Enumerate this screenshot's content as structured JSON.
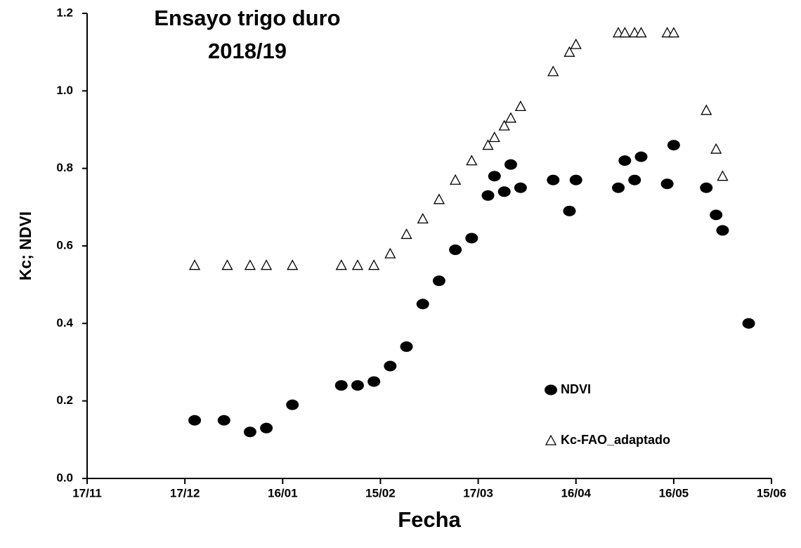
{
  "chart_data": {
    "type": "scatter",
    "title": [
      "Ensayo trigo duro",
      "2018/19"
    ],
    "x_label": "Fecha",
    "y_label": "Kc; NDVI",
    "xlim": [
      "17/11",
      "15/06"
    ],
    "xticks": [
      "17/11",
      "17/12",
      "16/01",
      "15/02",
      "17/03",
      "16/04",
      "16/05",
      "15/06"
    ],
    "ylim": [
      0,
      1.2
    ],
    "yticks": [
      {
        "value": 0,
        "label": "0.0"
      },
      {
        "value": 0.2,
        "label": "0.2"
      },
      {
        "value": 0.4,
        "label": "0.4"
      },
      {
        "value": 0.6,
        "label": "0.6"
      },
      {
        "value": 0.8,
        "label": "0.8"
      },
      {
        "value": 1.0,
        "label": "1.0"
      },
      {
        "value": 1.2,
        "label": "1.2"
      }
    ],
    "grid": false,
    "series": [
      {
        "name": "NDVI",
        "color": "#000000",
        "marker": "circle",
        "x": [
          "20/12",
          "29/12",
          "06/01",
          "11/01",
          "19/01",
          "03/02",
          "08/02",
          "13/02",
          "18/02",
          "23/02",
          "28/02",
          "05/03",
          "10/03",
          "15/03",
          "20/03",
          "22/03",
          "25/03",
          "27/03",
          "30/03",
          "09/04",
          "14/04",
          "16/04",
          "29/04",
          "01/05",
          "04/05",
          "06/05",
          "14/05",
          "16/05",
          "26/05",
          "29/05",
          "31/05",
          "08/06"
        ],
        "values": [
          0.15,
          0.15,
          0.12,
          0.13,
          0.19,
          0.24,
          0.24,
          0.25,
          0.29,
          0.34,
          0.45,
          0.51,
          0.59,
          0.62,
          0.73,
          0.78,
          0.74,
          0.81,
          0.75,
          0.77,
          0.69,
          0.77,
          0.75,
          0.82,
          0.77,
          0.83,
          0.76,
          0.86,
          0.75,
          0.68,
          0.64,
          0.4
        ]
      },
      {
        "name": "Kc-FAO_adaptado",
        "color": "#000000",
        "marker": "triangle",
        "x": [
          "20/12",
          "30/12",
          "06/01",
          "11/01",
          "19/01",
          "03/02",
          "08/02",
          "13/02",
          "18/02",
          "23/02",
          "28/02",
          "05/03",
          "10/03",
          "15/03",
          "20/03",
          "22/03",
          "25/03",
          "27/03",
          "30/03",
          "09/04",
          "14/04",
          "16/04",
          "29/04",
          "01/05",
          "04/05",
          "06/05",
          "14/05",
          "16/05",
          "26/05",
          "29/05",
          "31/05"
        ],
        "values": [
          0.55,
          0.55,
          0.55,
          0.55,
          0.55,
          0.55,
          0.55,
          0.55,
          0.58,
          0.63,
          0.67,
          0.72,
          0.77,
          0.82,
          0.86,
          0.88,
          0.91,
          0.93,
          0.96,
          1.05,
          1.1,
          1.12,
          1.15,
          1.15,
          1.15,
          1.15,
          1.15,
          1.15,
          0.95,
          0.85,
          0.78
        ]
      }
    ]
  }
}
